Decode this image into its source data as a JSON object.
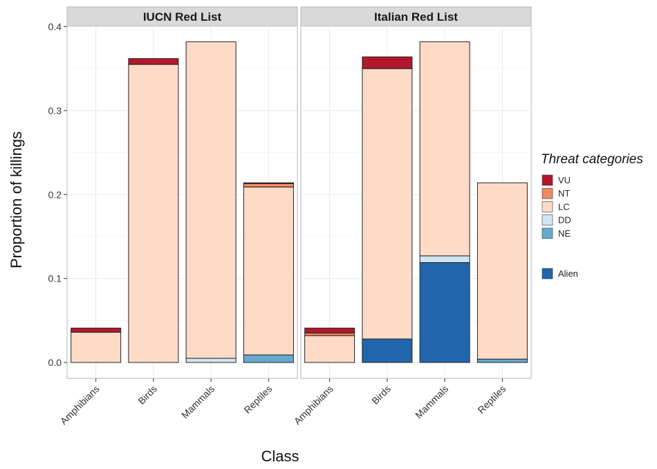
{
  "chart_data": {
    "type": "bar",
    "stacked": true,
    "xlabel": "Class",
    "ylabel": "Proportion of killings",
    "ylim": [
      0,
      0.4
    ],
    "yticks": [
      "0.0",
      "0.1",
      "0.2",
      "0.3",
      "0.4"
    ],
    "categories": [
      "Amphibians",
      "Birds",
      "Mammals",
      "Reptiles"
    ],
    "legend": {
      "title": "Threat categories",
      "position": "right",
      "entries": [
        {
          "key": "VU",
          "label": "VU",
          "color": "#b2182b"
        },
        {
          "key": "NT",
          "label": "NT",
          "color": "#ef8a62"
        },
        {
          "key": "LC",
          "label": "LC",
          "color": "#fddbc7"
        },
        {
          "key": "DD",
          "label": "DD",
          "color": "#d1e5f0"
        },
        {
          "key": "NE",
          "label": "NE",
          "color": "#67a9cf"
        },
        {
          "key": "Alien",
          "label": "Alien",
          "color": "#2166ac"
        }
      ]
    },
    "panels": [
      {
        "title": "IUCN Red List",
        "stack_order": [
          "NE",
          "DD",
          "LC",
          "NT",
          "VU"
        ],
        "series": [
          {
            "name": "NE",
            "values": [
              0,
              0,
              0,
              0.009
            ]
          },
          {
            "name": "DD",
            "values": [
              0,
              0,
              0.005,
              0
            ]
          },
          {
            "name": "LC",
            "values": [
              0.036,
              0.355,
              0.377,
              0.2
            ]
          },
          {
            "name": "NT",
            "values": [
              0,
              0,
              0,
              0.004
            ]
          },
          {
            "name": "VU",
            "values": [
              0.005,
              0.007,
              0,
              0.001
            ]
          }
        ]
      },
      {
        "title": "Italian Red List",
        "stack_order": [
          "Alien",
          "NE",
          "DD",
          "LC",
          "NT",
          "VU"
        ],
        "series": [
          {
            "name": "Alien",
            "values": [
              0,
              0.028,
              0.119,
              0
            ]
          },
          {
            "name": "NE",
            "values": [
              0,
              0,
              0,
              0.004
            ]
          },
          {
            "name": "DD",
            "values": [
              0,
              0,
              0.008,
              0
            ]
          },
          {
            "name": "LC",
            "values": [
              0.032,
              0.322,
              0.255,
              0.21
            ]
          },
          {
            "name": "NT",
            "values": [
              0.003,
              0,
              0,
              0
            ]
          },
          {
            "name": "VU",
            "values": [
              0.006,
              0.014,
              0,
              0
            ]
          }
        ]
      }
    ]
  }
}
